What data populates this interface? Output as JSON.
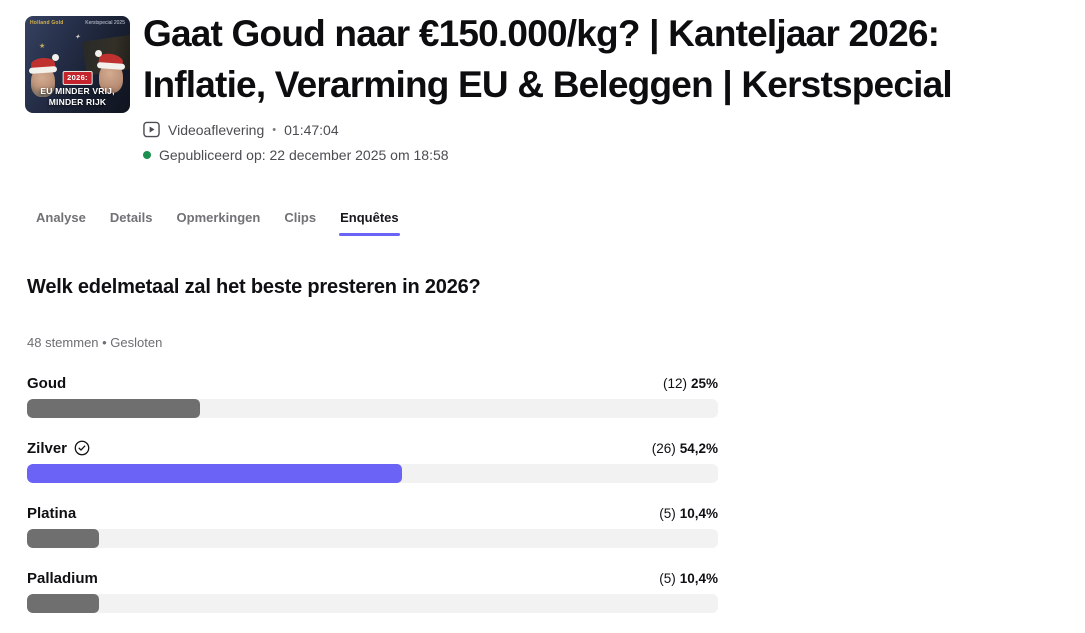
{
  "header": {
    "title": "Gaat Goud naar €150.000/kg? | Kanteljaar 2026: Inflatie, Verarming EU & Beleggen | Kerstspecial",
    "type_label": "Videoaflevering",
    "separator": "•",
    "duration": "01:47:04",
    "published": "Gepubliceerd op: 22 december 2025 om 18:58"
  },
  "thumbnail": {
    "brand": "Holland Gold",
    "edition": "Kerstspecial 2025",
    "badge": "2026:",
    "caption_line1": "EU MINDER VRIJ,",
    "caption_line2": "MINDER RIJK",
    "star": "★"
  },
  "tabs": [
    {
      "label": "Analyse"
    },
    {
      "label": "Details"
    },
    {
      "label": "Opmerkingen"
    },
    {
      "label": "Clips"
    },
    {
      "label": "Enquêtes"
    }
  ],
  "poll": {
    "question": "Welk edelmetaal zal het beste presteren in 2026?",
    "meta": "48 stemmen • Gesloten",
    "options": [
      {
        "label": "Goud",
        "votes": "(12)",
        "percent_label": "25%",
        "percent": 25,
        "fill_color": "#6f6f6f",
        "winner": false
      },
      {
        "label": "Zilver",
        "votes": "(26)",
        "percent_label": "54,2%",
        "percent": 54.2,
        "fill_color": "#6a63f6",
        "winner": true
      },
      {
        "label": "Platina",
        "votes": "(5)",
        "percent_label": "10,4%",
        "percent": 10.4,
        "fill_color": "#6f6f6f",
        "winner": false
      },
      {
        "label": "Palladium",
        "votes": "(5)",
        "percent_label": "10,4%",
        "percent": 10.4,
        "fill_color": "#6f6f6f",
        "winner": false
      }
    ]
  },
  "colors": {
    "accent": "#6a63f6",
    "bar_track": "#f2f2f2",
    "bar_gray": "#6f6f6f",
    "published_green": "#1d8f4e"
  }
}
